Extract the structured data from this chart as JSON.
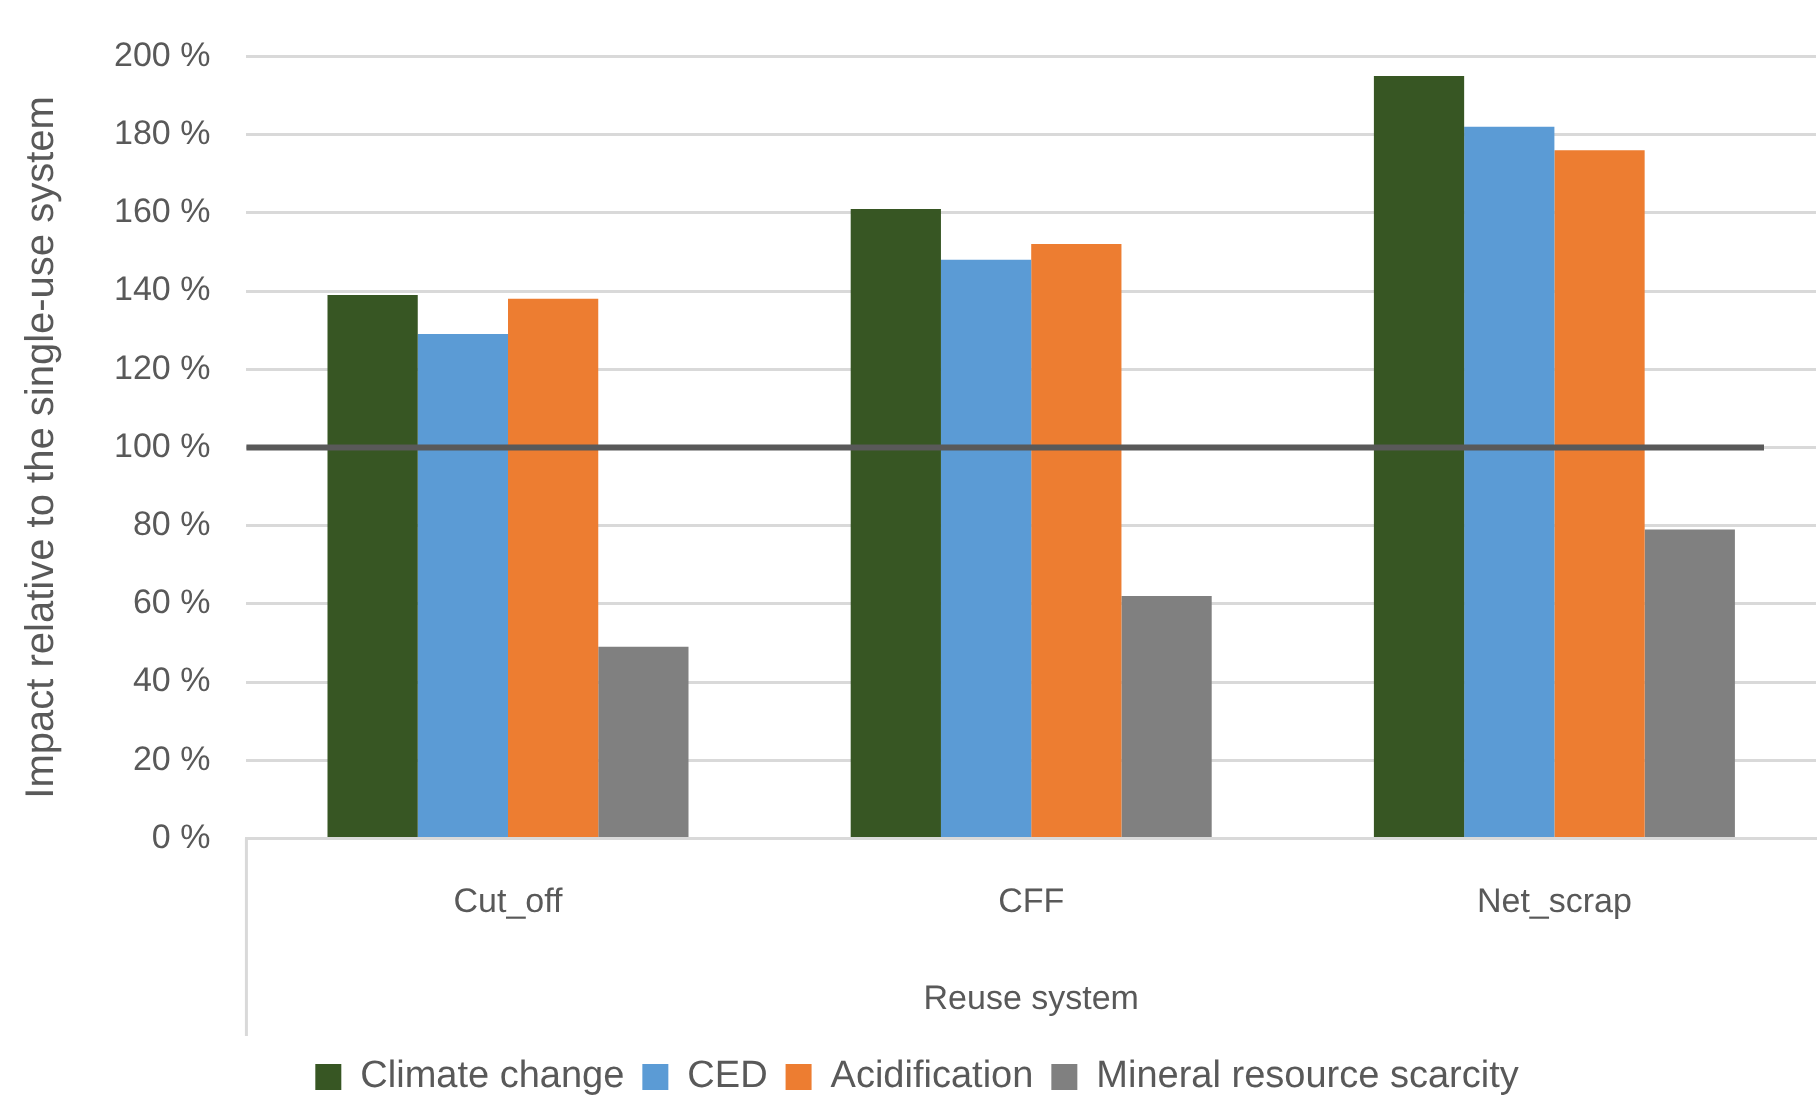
{
  "chart_data": {
    "type": "bar",
    "ylabel": "Impact relative to the single-use system",
    "xlabel": "Reuse system",
    "categories": [
      "Cut_off",
      "CFF",
      "Net_scrap"
    ],
    "series": [
      {
        "name": "Climate change",
        "color": "#375623",
        "values": [
          139,
          161,
          195
        ]
      },
      {
        "name": "CED",
        "color": "#5b9bd5",
        "values": [
          129,
          148,
          182
        ]
      },
      {
        "name": "Acidification",
        "color": "#ed7d31",
        "values": [
          138,
          152,
          176
        ]
      },
      {
        "name": "Mineral resource scarcity",
        "color": "#808080",
        "values": [
          49,
          62,
          79
        ]
      }
    ],
    "ylim": [
      0,
      200
    ],
    "yticks": [
      {
        "value": 0,
        "label": "0 %"
      },
      {
        "value": 20,
        "label": "20 %"
      },
      {
        "value": 40,
        "label": "40 %"
      },
      {
        "value": 60,
        "label": "60 %"
      },
      {
        "value": 80,
        "label": "80 %"
      },
      {
        "value": 100,
        "label": "100 %"
      },
      {
        "value": 120,
        "label": "120 %"
      },
      {
        "value": 140,
        "label": "140 %"
      },
      {
        "value": 160,
        "label": "160 %"
      },
      {
        "value": 180,
        "label": "180 %"
      },
      {
        "value": 200,
        "label": "200 %"
      }
    ],
    "grid": "y",
    "legend": "bottom",
    "ref_lines": [
      {
        "axis": "y",
        "value": 100,
        "color": "#595959"
      }
    ]
  }
}
